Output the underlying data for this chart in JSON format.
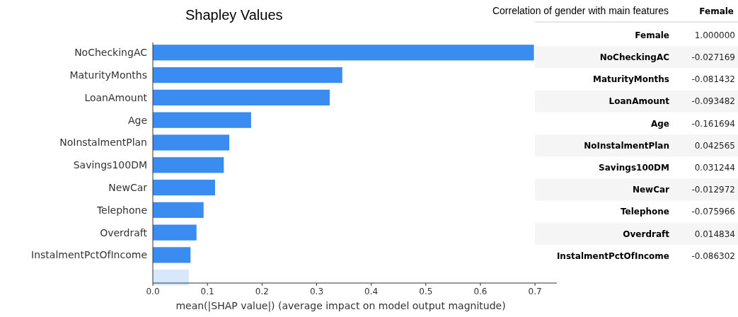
{
  "chart_data": [
    {
      "type": "bar",
      "orientation": "horizontal",
      "title": "Shapley Values",
      "xlabel": "mean(|SHAP value|) (average impact on model output magnitude)",
      "categories": [
        "NoCheckingAC",
        "MaturityMonths",
        "LoanAmount",
        "Age",
        "NoInstalmentPlan",
        "Savings100DM",
        "NewCar",
        "Telephone",
        "Overdraft",
        "InstalmentPctOfIncome",
        null
      ],
      "values": [
        0.698,
        0.347,
        0.324,
        0.18,
        0.14,
        0.13,
        0.114,
        0.093,
        0.08,
        0.069,
        0.066
      ],
      "colors": [
        "#3a8cf0",
        "#3a8cf0",
        "#3a8cf0",
        "#3a8cf0",
        "#3a8cf0",
        "#3a8cf0",
        "#3a8cf0",
        "#3a8cf0",
        "#3a8cf0",
        "#3a8cf0",
        "#d8e8fc"
      ],
      "xlim": [
        0,
        0.74
      ],
      "xticks": [
        {
          "value": 0,
          "label": "0.0"
        },
        0.1,
        0.2,
        0.3,
        0.4,
        0.5,
        0.6,
        0.7
      ],
      "grid": false
    },
    {
      "type": "other",
      "title": "Correlation of gender with main features",
      "categories": [
        "Female",
        "NoCheckingAC",
        "MaturityMonths",
        "LoanAmount",
        "Age",
        "NoInstalmentPlan",
        "Savings100DM",
        "NewCar",
        "Telephone",
        "Overdraft",
        "InstalmentPctOfIncome"
      ],
      "xlabel": "Female",
      "annotations": [
        "1.000000",
        "-0.027169",
        "-0.081432",
        "-0.093482",
        "-0.161694",
        "0.042565",
        "0.031244",
        "-0.012972",
        "-0.075966",
        "0.014834",
        "-0.086302"
      ]
    }
  ]
}
